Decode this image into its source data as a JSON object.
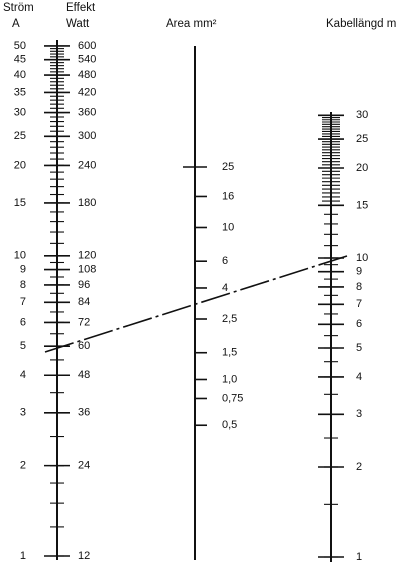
{
  "headers": {
    "current_title": "Ström",
    "current_unit": "A",
    "power_title": "Effekt",
    "power_unit": "Watt",
    "area_title": "Area mm²",
    "length_title": "Kabellängd m"
  },
  "current_scale": [
    "50",
    "45",
    "40",
    "35",
    "30",
    "25",
    "20",
    "15",
    "10",
    "9",
    "8",
    "7",
    "6",
    "5",
    "4",
    "3",
    "2",
    "1"
  ],
  "power_scale": [
    "600",
    "540",
    "480",
    "420",
    "360",
    "300",
    "240",
    "180",
    "120",
    "108",
    "96",
    "84",
    "72",
    "60",
    "48",
    "36",
    "24",
    "12"
  ],
  "area_scale": [
    "25",
    "16",
    "10",
    "6",
    "4",
    "2,5",
    "1,5",
    "1,0",
    "0,75",
    "0,5"
  ],
  "length_scale": [
    "30",
    "25",
    "20",
    "15",
    "10",
    "9",
    "8",
    "7",
    "6",
    "5",
    "4",
    "3",
    "2",
    "1"
  ]
}
